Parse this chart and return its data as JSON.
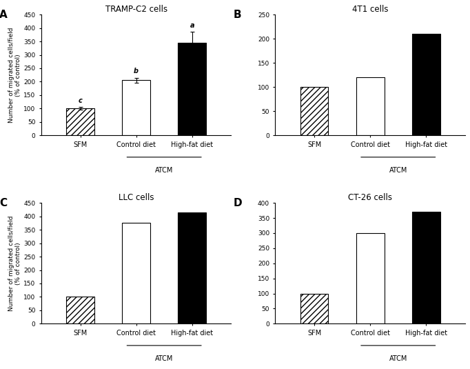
{
  "panels": [
    {
      "label": "A",
      "title": "TRAMP-C2 cells",
      "categories": [
        "SFM",
        "Control diet",
        "High-fat diet"
      ],
      "values": [
        100,
        205,
        345
      ],
      "errors": [
        5,
        10,
        40
      ],
      "ylim": [
        0,
        450
      ],
      "yticks": [
        0,
        50,
        100,
        150,
        200,
        250,
        300,
        350,
        400,
        450
      ],
      "bar_styles": [
        "hatch",
        "white",
        "black"
      ],
      "sig_labels": [
        "c",
        "b",
        "a"
      ],
      "has_error": [
        true,
        true,
        true
      ]
    },
    {
      "label": "B",
      "title": "4T1 cells",
      "categories": [
        "SFM",
        "Control diet",
        "High-fat diet"
      ],
      "values": [
        100,
        120,
        210
      ],
      "errors": [
        0,
        0,
        0
      ],
      "ylim": [
        0,
        250
      ],
      "yticks": [
        0,
        50,
        100,
        150,
        200,
        250
      ],
      "bar_styles": [
        "hatch",
        "white",
        "black"
      ],
      "sig_labels": [
        null,
        null,
        null
      ],
      "has_error": [
        false,
        false,
        false
      ]
    },
    {
      "label": "C",
      "title": "LLC cells",
      "categories": [
        "SFM",
        "Control diet",
        "High-fat diet"
      ],
      "values": [
        100,
        375,
        415
      ],
      "errors": [
        0,
        0,
        0
      ],
      "ylim": [
        0,
        450
      ],
      "yticks": [
        0,
        50,
        100,
        150,
        200,
        250,
        300,
        350,
        400,
        450
      ],
      "bar_styles": [
        "hatch",
        "white",
        "black"
      ],
      "sig_labels": [
        null,
        null,
        null
      ],
      "has_error": [
        false,
        false,
        false
      ]
    },
    {
      "label": "D",
      "title": "CT-26 cells",
      "categories": [
        "SFM",
        "Control diet",
        "High-fat diet"
      ],
      "values": [
        100,
        300,
        370
      ],
      "errors": [
        0,
        0,
        0
      ],
      "ylim": [
        0,
        400
      ],
      "yticks": [
        0,
        50,
        100,
        150,
        200,
        250,
        300,
        350,
        400
      ],
      "bar_styles": [
        "hatch",
        "white",
        "black"
      ],
      "sig_labels": [
        null,
        null,
        null
      ],
      "has_error": [
        false,
        false,
        false
      ]
    }
  ],
  "ylabel": "Number of migrated cells/field\n(% of control)",
  "atcm_label": "ATCM",
  "bar_width": 0.5,
  "background_color": "#ffffff"
}
